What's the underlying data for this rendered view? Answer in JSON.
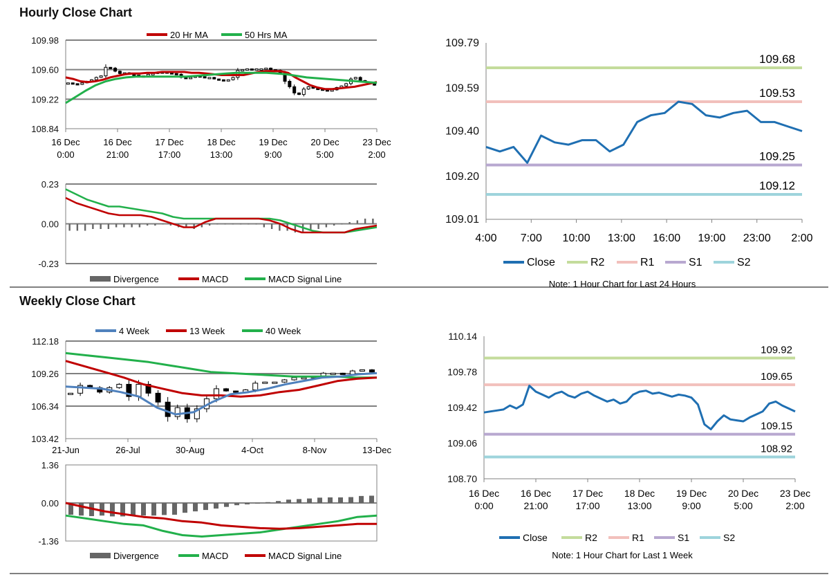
{
  "sections": {
    "hourly_title": "Hourly Close Chart",
    "weekly_title": "Weekly Close Chart"
  },
  "colors": {
    "ma20": "#c00000",
    "ma50": "#22b04b",
    "w4": "#4f81bd",
    "w13": "#c00000",
    "w40": "#22b04b",
    "macd_red": "#c00000",
    "signal_green": "#22b04b",
    "divergence": "#666666",
    "close": "#1f6fb2",
    "r2": "#c4dc9c",
    "r1": "#f2c0bc",
    "s1": "#b8a8d0",
    "s2": "#9ed4dc",
    "grid": "#808080"
  },
  "chart_data": [
    {
      "id": "hourly-price",
      "type": "candlestick",
      "legend": [
        "20 Hr MA",
        "50 Hrs MA"
      ],
      "ylim": [
        108.84,
        109.98
      ],
      "yticks": [
        "109.98",
        "109.60",
        "109.22",
        "108.84"
      ],
      "xticks": [
        [
          "16 Dec",
          "0:00"
        ],
        [
          "16 Dec",
          "21:00"
        ],
        [
          "17 Dec",
          "17:00"
        ],
        [
          "18 Dec",
          "13:00"
        ],
        [
          "19 Dec",
          "9:00"
        ],
        [
          "20 Dec",
          "5:00"
        ],
        [
          "23 Dec",
          "2:00"
        ]
      ],
      "close": [
        109.43,
        109.42,
        109.41,
        109.43,
        109.45,
        109.47,
        109.5,
        109.52,
        109.63,
        109.62,
        109.58,
        109.55,
        109.56,
        109.54,
        109.53,
        109.52,
        109.52,
        109.54,
        109.55,
        109.57,
        109.57,
        109.56,
        109.55,
        109.54,
        109.5,
        109.49,
        109.5,
        109.52,
        109.51,
        109.5,
        109.5,
        109.48,
        109.47,
        109.46,
        109.47,
        109.5,
        109.59,
        109.6,
        109.61,
        109.6,
        109.61,
        109.61,
        109.62,
        109.6,
        109.59,
        109.55,
        109.45,
        109.38,
        109.3,
        109.28,
        109.35,
        109.38,
        109.36,
        109.35,
        109.34,
        109.33,
        109.34,
        109.37,
        109.39,
        109.42,
        109.48,
        109.5,
        109.46,
        109.44,
        109.42,
        109.4
      ],
      "ma20": [
        109.5,
        109.48,
        109.45,
        109.44,
        109.45,
        109.47,
        109.5,
        109.52,
        109.54,
        109.55,
        109.55,
        109.56,
        109.56,
        109.57,
        109.57,
        109.57,
        109.57,
        109.56,
        109.56,
        109.55,
        109.54,
        109.53,
        109.53,
        109.53,
        109.53,
        109.55,
        109.57,
        109.58,
        109.58,
        109.58,
        109.56,
        109.5,
        109.45,
        109.4,
        109.37,
        109.35,
        109.35,
        109.36,
        109.37,
        109.38,
        109.4,
        109.42,
        109.44
      ],
      "ma50": [
        109.17,
        109.25,
        109.33,
        109.4,
        109.45,
        109.48,
        109.5,
        109.51,
        109.51,
        109.51,
        109.51,
        109.51,
        109.51,
        109.52,
        109.53,
        109.54,
        109.55,
        109.56,
        109.56,
        109.56,
        109.56,
        109.55,
        109.54,
        109.52,
        109.5,
        109.49,
        109.48,
        109.47,
        109.46,
        109.45,
        109.44,
        109.43
      ]
    },
    {
      "id": "hourly-macd",
      "type": "macd",
      "legend": [
        "Divergence",
        "MACD",
        "MACD Signal Line"
      ],
      "ylim": [
        -0.23,
        0.23
      ],
      "yticks": [
        "0.23",
        "0.00",
        "-0.23"
      ],
      "macd": [
        0.15,
        0.12,
        0.1,
        0.08,
        0.06,
        0.05,
        0.05,
        0.05,
        0.04,
        0.02,
        0.0,
        -0.02,
        -0.02,
        0.01,
        0.03,
        0.03,
        0.03,
        0.03,
        0.03,
        0.02,
        0.0,
        -0.03,
        -0.05,
        -0.05,
        -0.05,
        -0.05,
        -0.05,
        -0.03,
        -0.02,
        -0.01
      ],
      "signal": [
        0.2,
        0.17,
        0.14,
        0.12,
        0.1,
        0.1,
        0.09,
        0.08,
        0.07,
        0.06,
        0.04,
        0.03,
        0.03,
        0.03,
        0.03,
        0.03,
        0.03,
        0.03,
        0.03,
        0.03,
        0.02,
        0.0,
        -0.02,
        -0.04,
        -0.05,
        -0.05,
        -0.05,
        -0.04,
        -0.03,
        -0.02
      ],
      "divergence": [
        -0.04,
        -0.04,
        -0.04,
        -0.03,
        -0.03,
        -0.03,
        -0.02,
        -0.02,
        -0.02,
        -0.02,
        -0.01,
        -0.01,
        0.0,
        -0.01,
        -0.02,
        -0.02,
        -0.03,
        -0.02,
        -0.01,
        0.0,
        0.0,
        0.0,
        0.0,
        0.0,
        0.0,
        -0.02,
        -0.03,
        -0.04,
        -0.04,
        -0.05,
        -0.05,
        -0.04,
        -0.03,
        -0.02,
        -0.01,
        0.0,
        0.01,
        0.02,
        0.03,
        0.03
      ]
    },
    {
      "id": "hourly-24h",
      "type": "line",
      "legend": [
        "Close",
        "R2",
        "R1",
        "S1",
        "S2"
      ],
      "note": "Note: 1 Hour Chart for Last 24 Hours",
      "ylim": [
        109.01,
        109.79
      ],
      "yticks": [
        "109.79",
        "109.59",
        "109.40",
        "109.20",
        "109.01"
      ],
      "xticks": [
        "4:00",
        "7:00",
        "10:00",
        "13:00",
        "16:00",
        "19:00",
        "23:00",
        "2:00"
      ],
      "close": [
        109.33,
        109.31,
        109.33,
        109.26,
        109.38,
        109.35,
        109.34,
        109.36,
        109.36,
        109.31,
        109.34,
        109.44,
        109.47,
        109.48,
        109.53,
        109.52,
        109.47,
        109.46,
        109.48,
        109.49,
        109.44,
        109.44,
        109.42,
        109.4
      ],
      "levels": {
        "R2": 109.68,
        "R1": 109.53,
        "S1": 109.25,
        "S2": 109.12
      },
      "level_labels": {
        "R2": "109.68",
        "R1": "109.53",
        "S1": "109.25",
        "S2": "109.12"
      }
    },
    {
      "id": "weekly-price",
      "type": "candlestick",
      "legend": [
        "4 Week",
        "13 Week",
        "40 Week"
      ],
      "ylim": [
        103.42,
        112.18
      ],
      "yticks": [
        "112.18",
        "109.26",
        "106.34",
        "103.42"
      ],
      "xticks": [
        "21-Jun",
        "26-Jul",
        "30-Aug",
        "4-Oct",
        "8-Nov",
        "13-Dec"
      ],
      "close": [
        107.5,
        108.2,
        108.0,
        107.6,
        108.0,
        108.3,
        107.2,
        108.3,
        107.5,
        106.7,
        105.4,
        106.2,
        105.2,
        106.1,
        107.0,
        107.9,
        107.7,
        107.6,
        107.8,
        108.4,
        108.5,
        108.5,
        108.7,
        108.9,
        108.9,
        109.0,
        109.3,
        109.3,
        109.2,
        109.5,
        109.6,
        109.4
      ],
      "ma4": [
        108.1,
        108.0,
        107.9,
        107.6,
        107.2,
        106.2,
        105.6,
        105.8,
        106.7,
        107.4,
        107.6,
        107.9,
        108.3,
        108.6,
        108.9,
        109.0,
        109.2,
        109.3
      ],
      "ma13": [
        110.4,
        109.9,
        109.4,
        108.9,
        108.3,
        107.9,
        107.5,
        107.3,
        107.3,
        107.2,
        107.3,
        107.6,
        107.8,
        108.2,
        108.6,
        108.8,
        108.9
      ],
      "ma40": [
        111.1,
        110.9,
        110.7,
        110.5,
        110.3,
        110.0,
        109.7,
        109.4,
        109.3,
        109.2,
        109.1,
        109.0,
        109.0,
        109.0,
        108.9,
        108.9
      ]
    },
    {
      "id": "weekly-macd",
      "type": "macd",
      "legend": [
        "Divergence",
        "MACD",
        "MACD Signal Line"
      ],
      "ylim": [
        -1.36,
        1.36
      ],
      "yticks": [
        "1.36",
        "0.00",
        "-1.36"
      ],
      "macd": [
        -0.45,
        -0.55,
        -0.65,
        -0.75,
        -0.8,
        -1.0,
        -1.15,
        -1.2,
        -1.15,
        -1.1,
        -1.05,
        -0.95,
        -0.85,
        -0.75,
        -0.65,
        -0.5,
        -0.45
      ],
      "signal": [
        0.0,
        -0.15,
        -0.3,
        -0.4,
        -0.5,
        -0.55,
        -0.65,
        -0.7,
        -0.8,
        -0.85,
        -0.9,
        -0.92,
        -0.9,
        -0.85,
        -0.8,
        -0.75,
        -0.75
      ],
      "divergence": [
        -0.42,
        -0.45,
        -0.47,
        -0.45,
        -0.48,
        -0.48,
        -0.45,
        -0.45,
        -0.45,
        -0.43,
        -0.42,
        -0.35,
        -0.3,
        -0.25,
        -0.2,
        -0.14,
        -0.08,
        -0.05,
        0.0,
        0.03,
        0.07,
        0.12,
        0.14,
        0.16,
        0.19,
        0.2,
        0.2,
        0.21,
        0.25,
        0.26
      ]
    },
    {
      "id": "weekly-1h",
      "type": "line",
      "legend": [
        "Close",
        "R2",
        "R1",
        "S1",
        "S2"
      ],
      "note": "Note: 1 Hour Chart for Last 1 Week",
      "ylim": [
        108.7,
        110.14
      ],
      "yticks": [
        "110.14",
        "109.78",
        "109.42",
        "109.06",
        "108.70"
      ],
      "xticks": [
        [
          "16 Dec",
          "0:00"
        ],
        [
          "16 Dec",
          "21:00"
        ],
        [
          "17 Dec",
          "17:00"
        ],
        [
          "18 Dec",
          "13:00"
        ],
        [
          "19 Dec",
          "9:00"
        ],
        [
          "20 Dec",
          "5:00"
        ],
        [
          "23 Dec",
          "2:00"
        ]
      ],
      "close": [
        109.37,
        109.38,
        109.39,
        109.4,
        109.44,
        109.41,
        109.45,
        109.64,
        109.58,
        109.55,
        109.52,
        109.56,
        109.58,
        109.54,
        109.52,
        109.56,
        109.58,
        109.54,
        109.51,
        109.48,
        109.5,
        109.46,
        109.48,
        109.55,
        109.58,
        109.59,
        109.56,
        109.57,
        109.55,
        109.53,
        109.55,
        109.54,
        109.52,
        109.45,
        109.25,
        109.2,
        109.28,
        109.34,
        109.3,
        109.29,
        109.28,
        109.32,
        109.35,
        109.38,
        109.46,
        109.48,
        109.44,
        109.41,
        109.38
      ],
      "levels": {
        "R2": 109.92,
        "R1": 109.65,
        "S1": 109.15,
        "S2": 108.92
      },
      "level_labels": {
        "R2": "109.92",
        "R1": "109.65",
        "S1": "109.15",
        "S2": "108.92"
      }
    }
  ]
}
